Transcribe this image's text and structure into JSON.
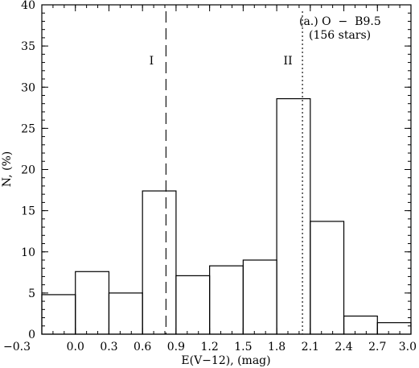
{
  "chart_data": {
    "type": "bar",
    "bins": [
      {
        "x0": -0.3,
        "x1": 0.0,
        "value": 4.8
      },
      {
        "x0": 0.0,
        "x1": 0.3,
        "value": 7.6
      },
      {
        "x0": 0.3,
        "x1": 0.6,
        "value": 5.0
      },
      {
        "x0": 0.6,
        "x1": 0.9,
        "value": 17.4
      },
      {
        "x0": 0.9,
        "x1": 1.2,
        "value": 7.1
      },
      {
        "x0": 1.2,
        "x1": 1.5,
        "value": 8.3
      },
      {
        "x0": 1.5,
        "x1": 1.8,
        "value": 9.0
      },
      {
        "x0": 1.8,
        "x1": 2.1,
        "value": 28.6
      },
      {
        "x0": 2.1,
        "x1": 2.4,
        "value": 13.7
      },
      {
        "x0": 2.4,
        "x1": 2.7,
        "value": 2.2
      },
      {
        "x0": 2.7,
        "x1": 3.0,
        "value": 1.4
      }
    ],
    "xlabel": "E(V−12), (mag)",
    "ylabel": "N, (%)",
    "xlim": [
      -0.3,
      3.0
    ],
    "ylim": [
      0,
      40
    ],
    "xticks": [
      "−0.3",
      "0.0",
      "0.3",
      "0.6",
      "0.9",
      "1.2",
      "1.5",
      "1.8",
      "2.1",
      "2.4",
      "2.7",
      "3.0"
    ],
    "yticks": [
      "0",
      "5",
      "10",
      "15",
      "20",
      "25",
      "30",
      "35",
      "40"
    ],
    "vlines": [
      {
        "x": 0.81,
        "style": "dashed",
        "label": "I"
      },
      {
        "x": 2.03,
        "style": "dotted",
        "label": "II"
      }
    ],
    "annotation_lines": [
      "(a.) O  −  B9.5",
      "(156 stars)"
    ]
  }
}
